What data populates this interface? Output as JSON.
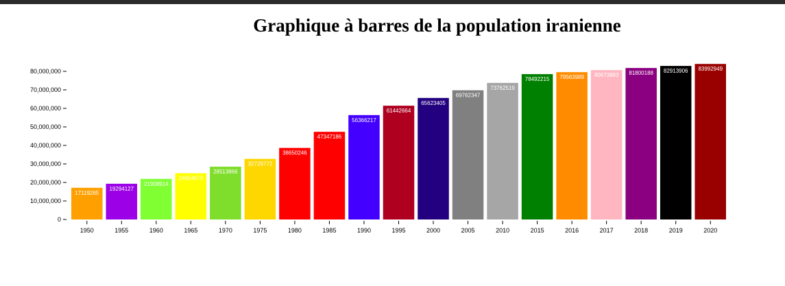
{
  "chart_data": {
    "type": "bar",
    "title": "Graphique à barres de la population iranienne",
    "xlabel": "",
    "ylabel": "",
    "ylim": [
      0,
      80000000
    ],
    "yticks": [
      0,
      10000000,
      20000000,
      30000000,
      40000000,
      50000000,
      60000000,
      70000000,
      80000000
    ],
    "ytick_labels": [
      "0",
      "10,000,000",
      "20,000,000",
      "30,000,000",
      "40,000,000",
      "50,000,000",
      "60,000,000",
      "70,000,000",
      "80,000,000"
    ],
    "categories": [
      "1950",
      "1955",
      "1960",
      "1965",
      "1970",
      "1975",
      "1980",
      "1985",
      "1990",
      "1995",
      "2000",
      "2005",
      "2010",
      "2015",
      "2016",
      "2017",
      "2018",
      "2019",
      "2020"
    ],
    "values": [
      17119265,
      19294127,
      21908914,
      24954673,
      28513866,
      32729772,
      38650246,
      47347186,
      56366217,
      61442664,
      65623405,
      69762347,
      73762519,
      78492215,
      79563989,
      80673883,
      81800188,
      82913906,
      83992949
    ],
    "colors": [
      "#ffa000",
      "#9b00e6",
      "#80ff33",
      "#ffff00",
      "#7fdd2b",
      "#ffd700",
      "#ff0000",
      "#ff0000",
      "#4400ff",
      "#b00020",
      "#22007f",
      "#808080",
      "#a6a6a6",
      "#008000",
      "#ff8c00",
      "#ffb6c1",
      "#8b0080",
      "#000000",
      "#990000"
    ],
    "grid": false,
    "legend": "none"
  }
}
